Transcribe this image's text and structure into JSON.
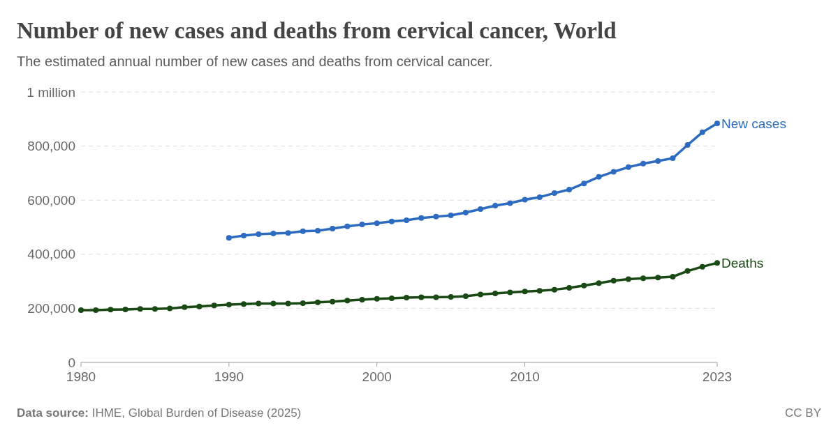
{
  "chart_data": {
    "type": "line",
    "title": "Number of new cases and deaths from cervical cancer, World",
    "subtitle": "The estimated annual number of new cases and deaths from cervical cancer.",
    "x": [
      1980,
      1981,
      1982,
      1983,
      1984,
      1985,
      1986,
      1987,
      1988,
      1989,
      1990,
      1991,
      1992,
      1993,
      1994,
      1995,
      1996,
      1997,
      1998,
      1999,
      2000,
      2001,
      2002,
      2003,
      2004,
      2005,
      2006,
      2007,
      2008,
      2009,
      2010,
      2011,
      2012,
      2013,
      2014,
      2015,
      2016,
      2017,
      2018,
      2019,
      2020,
      2021,
      2022,
      2023
    ],
    "series": [
      {
        "name": "New cases",
        "color": "#2c6bbf",
        "values": [
          null,
          null,
          null,
          null,
          null,
          null,
          null,
          null,
          null,
          null,
          461000,
          469000,
          474000,
          477000,
          479000,
          485000,
          487000,
          495000,
          503000,
          510000,
          515000,
          521000,
          526000,
          534000,
          539000,
          544000,
          554000,
          567000,
          580000,
          589000,
          602000,
          611000,
          626000,
          639000,
          662000,
          686000,
          705000,
          722000,
          735000,
          745000,
          755000,
          804000,
          851000,
          884000
        ]
      },
      {
        "name": "Deaths",
        "color": "#1a4a14",
        "values": [
          193000,
          193000,
          195000,
          196000,
          198000,
          198000,
          200000,
          204000,
          207000,
          211000,
          214000,
          216000,
          218000,
          218000,
          218000,
          219000,
          222000,
          225000,
          229000,
          232000,
          235000,
          237000,
          240000,
          241000,
          241000,
          242000,
          245000,
          251000,
          255000,
          259000,
          262000,
          265000,
          269000,
          276000,
          284000,
          293000,
          302000,
          308000,
          311000,
          314000,
          317000,
          338000,
          354000,
          368000
        ]
      }
    ],
    "xlim": [
      1980,
      2023
    ],
    "xticks": [
      1980,
      1990,
      2000,
      2010,
      2023
    ],
    "ylim": [
      0,
      1000000
    ],
    "yticks": [
      0,
      {
        "value": 200000,
        "label": "200,000"
      },
      {
        "value": 400000,
        "label": "400,000"
      },
      {
        "value": 600000,
        "label": "600,000"
      },
      {
        "value": 800000,
        "label": "800,000"
      },
      {
        "value": 1000000,
        "label": "1 million"
      }
    ],
    "grid": "y",
    "marker": "circle",
    "line_style": "solid",
    "annotations": [
      "Data source: IHME, Global Burden of Disease (2025)",
      "CC BY"
    ]
  }
}
